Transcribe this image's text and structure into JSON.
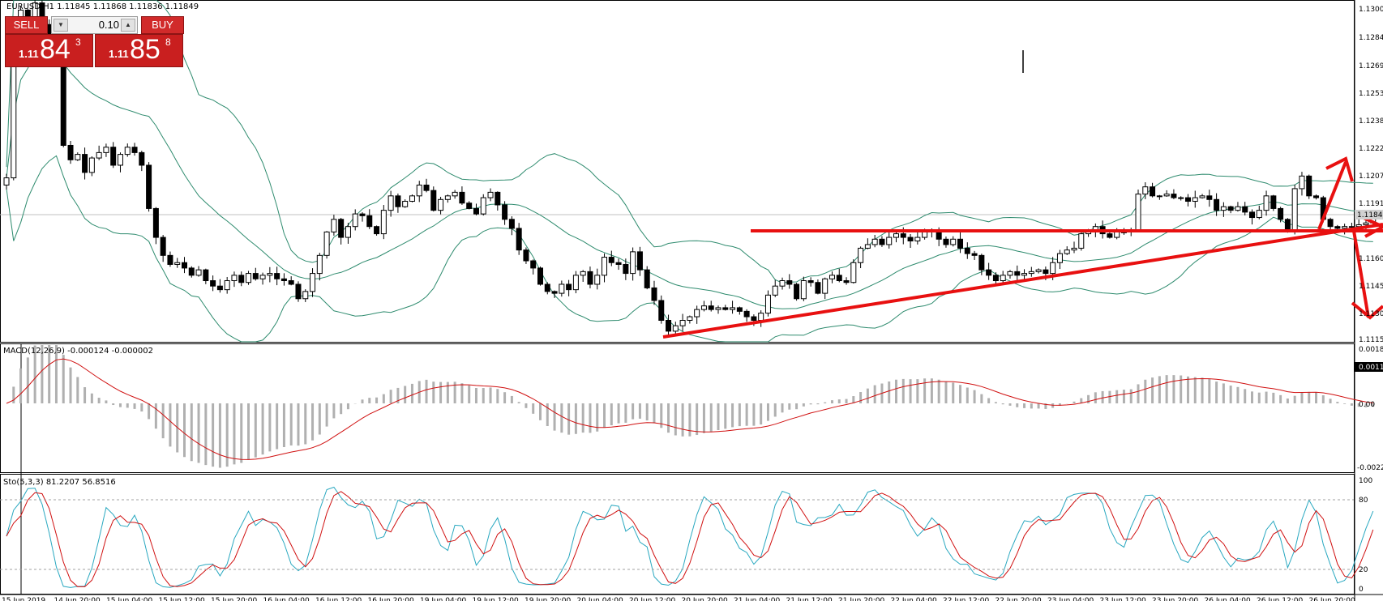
{
  "window": {
    "title": "EURUSD,H1  1.11845 1.11868 1.11836 1.11849"
  },
  "trade_panel": {
    "sell_label": "SELL",
    "buy_label": "BUY",
    "lot_value": "0.10",
    "bid": {
      "prefix": "1.11",
      "big": "84",
      "sup": "3"
    },
    "ask": {
      "prefix": "1.11",
      "big": "85",
      "sup": "8"
    }
  },
  "colors": {
    "bear_candle": "#000000",
    "bull_candle": "#ffffff",
    "bollinger": "#2e8b6e",
    "annotation": "#e81010",
    "macd_hist": "#b0b0b0",
    "signal": "#d01010",
    "stoch_main": "#29a8c0",
    "stoch_signal": "#d01010"
  },
  "price_axis": {
    "labels": [
      "1.13000",
      "1.12845",
      "1.12690",
      "1.12535",
      "1.12380",
      "1.12225",
      "1.12070",
      "1.11915",
      "1.11760",
      "1.11605",
      "1.11450",
      "1.11300",
      "1.11150"
    ],
    "current_price": "1.11849"
  },
  "macd": {
    "title": "MACD(12,26,9) -0.000124 -0.000002",
    "axis_labels": [
      "0.00189",
      "0.00110",
      "0.00",
      "-0.00225"
    ]
  },
  "stoch": {
    "title": "Sto(5,3,3) 81.2207 56.8516",
    "axis_labels": [
      "100",
      "80",
      "20",
      "0"
    ]
  },
  "time_axis": {
    "labels": [
      "15 Jun 2019",
      "14 Jun 20:00",
      "15 Jun 04:00",
      "15 Jun 12:00",
      "15 Jun 20:00",
      "16 Jun 04:00",
      "16 Jun 12:00",
      "16 Jun 20:00",
      "19 Jun 04:00",
      "19 Jun 12:00",
      "19 Jun 20:00",
      "20 Jun 04:00",
      "20 Jun 12:00",
      "20 Jun 20:00",
      "21 Jun 04:00",
      "21 Jun 12:00",
      "21 Jun 20:00",
      "22 Jun 04:00",
      "22 Jun 12:00",
      "22 Jun 20:00",
      "23 Jun 04:00",
      "23 Jun 12:00",
      "23 Jun 20:00",
      "26 Jun 04:00",
      "26 Jun 12:00",
      "26 Jun 20:00"
    ]
  },
  "chart_data": {
    "type": "candlestick",
    "symbol": "EURUSD",
    "timeframe": "H1",
    "ylim": [
      1.1115,
      1.13
    ],
    "close": [
      1.1205,
      1.1275,
      1.1298,
      1.1285,
      1.1302,
      1.129,
      1.1272,
      1.1268,
      1.1223,
      1.1215,
      1.1218,
      1.1208,
      1.1216,
      1.1219,
      1.1222,
      1.1212,
      1.1218,
      1.1222,
      1.1219,
      1.1212,
      1.1188,
      1.1172,
      1.1162,
      1.1157,
      1.1158,
      1.1155,
      1.1151,
      1.1154,
      1.1148,
      1.1145,
      1.1143,
      1.1148,
      1.1151,
      1.1147,
      1.1152,
      1.1149,
      1.1151,
      1.1152,
      1.1149,
      1.1148,
      1.1146,
      1.1138,
      1.1142,
      1.1152,
      1.1162,
      1.1175,
      1.1182,
      1.1172,
      1.1178,
      1.1185,
      1.1184,
      1.1178,
      1.1174,
      1.1187,
      1.1195,
      1.1189,
      1.1192,
      1.1195,
      1.1201,
      1.1198,
      1.1187,
      1.1193,
      1.1195,
      1.1197,
      1.1191,
      1.1188,
      1.1185,
      1.1194,
      1.1197,
      1.119,
      1.1182,
      1.1177,
      1.1165,
      1.1159,
      1.1155,
      1.1146,
      1.1142,
      1.1141,
      1.1146,
      1.1143,
      1.1151,
      1.1153,
      1.1146,
      1.1151,
      1.1161,
      1.1158,
      1.1157,
      1.1152,
      1.1164,
      1.1154,
      1.1144,
      1.1137,
      1.1126,
      1.112,
      1.1123,
      1.1126,
      1.1128,
      1.1132,
      1.1134,
      1.1132,
      1.1133,
      1.1132,
      1.1133,
      1.1131,
      1.1128,
      1.1126,
      1.113,
      1.114,
      1.1145,
      1.1148,
      1.1146,
      1.1138,
      1.1148,
      1.1147,
      1.1141,
      1.1149,
      1.1151,
      1.1148,
      1.1147,
      1.1158,
      1.1166,
      1.1168,
      1.1171,
      1.1168,
      1.1172,
      1.1174,
      1.1172,
      1.117,
      1.1172,
      1.1176,
      1.1175,
      1.1171,
      1.1168,
      1.1171,
      1.1166,
      1.1163,
      1.1162,
      1.1154,
      1.1151,
      1.1148,
      1.1151,
      1.1153,
      1.1151,
      1.1152,
      1.1153,
      1.1154,
      1.1152,
      1.1158,
      1.1163,
      1.1165,
      1.1166,
      1.1174,
      1.1176,
      1.1178,
      1.1174,
      1.1172,
      1.1175,
      1.1175,
      1.1176,
      1.1196,
      1.12,
      1.1195,
      1.1195,
      1.1196,
      1.1194,
      1.1194,
      1.1192,
      1.1194,
      1.1195,
      1.1193,
      1.1187,
      1.1189,
      1.1187,
      1.1189,
      1.1186,
      1.1183,
      1.1187,
      1.1195,
      1.1188,
      1.1182,
      1.1176,
      1.1199,
      1.1206,
      1.1195,
      1.1194,
      1.1182,
      1.1178,
      1.1177,
      1.1178,
      1.1178,
      1.1179,
      1.118,
      1.1184
    ],
    "bollinger_bands": true,
    "annotations": [
      "horizontal resistance line",
      "ascending support line",
      "up/down arrows"
    ],
    "macd_params": [
      12,
      26,
      9
    ],
    "stochastic_params": [
      5,
      3,
      3
    ]
  }
}
